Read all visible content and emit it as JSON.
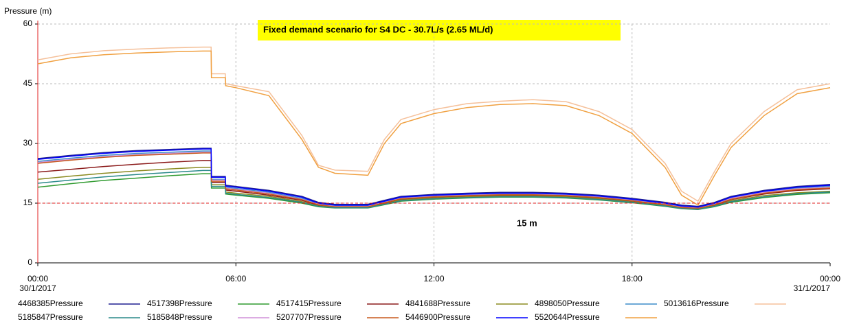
{
  "chart_data": {
    "type": "line",
    "title": "Fixed demand scenario for S4 DC - 30.7L/s (2.65 ML/d)",
    "y_label": "Pressure (m)",
    "threshold": {
      "value": 15,
      "label": "15 m",
      "color": "#e02020"
    },
    "x": [
      0,
      1,
      2,
      3,
      4,
      5,
      5.25,
      5.26,
      5.68,
      5.69,
      6,
      7,
      8,
      8.5,
      9,
      10,
      10.5,
      11,
      12,
      13,
      14,
      15,
      16,
      17,
      18,
      19,
      19.5,
      20,
      20.5,
      21,
      22,
      23,
      24
    ],
    "xlim": [
      0,
      24
    ],
    "xticks": [
      {
        "value": 0,
        "label": "00:00"
      },
      {
        "value": 6,
        "label": "06:00"
      },
      {
        "value": 12,
        "label": "12:00"
      },
      {
        "value": 18,
        "label": "18:00"
      },
      {
        "value": 24,
        "label": "00:00"
      }
    ],
    "date_labels": [
      {
        "value": 0,
        "label": "30/1/2017"
      },
      {
        "value": 24,
        "label": "31/1/2017"
      }
    ],
    "ylim": [
      0,
      60
    ],
    "yticks": [
      0,
      15,
      30,
      45,
      60
    ],
    "grid": true,
    "series": [
      {
        "name": "4468385Pressure",
        "color": "#1f1f8f",
        "values": [
          26.2,
          27,
          27.7,
          28.2,
          28.5,
          28.8,
          28.8,
          21.7,
          21.7,
          19.5,
          19.2,
          18.2,
          16.7,
          15.2,
          14.7,
          14.7,
          15.7,
          16.7,
          17.2,
          17.5,
          17.7,
          17.7,
          17.5,
          17,
          16.2,
          15.2,
          14.5,
          14.2,
          15.2,
          16.7,
          18.2,
          19.2,
          19.7
        ]
      },
      {
        "name": "4517398Pressure",
        "color": "#2e9a2e",
        "values": [
          19,
          19.9,
          20.7,
          21.3,
          21.9,
          22.4,
          22.4,
          18.8,
          18.8,
          17.3,
          17,
          16.2,
          15,
          14.1,
          13.8,
          13.8,
          14.6,
          15.5,
          16,
          16.3,
          16.5,
          16.5,
          16.3,
          15.8,
          15.1,
          14.2,
          13.6,
          13.4,
          14.1,
          15.2,
          16.4,
          17.2,
          17.6
        ]
      },
      {
        "name": "4517415Pressure",
        "color": "#8b1a1a",
        "values": [
          22.8,
          23.5,
          24.2,
          24.8,
          25.3,
          25.7,
          25.7,
          20.2,
          20.2,
          18.3,
          18,
          17,
          15.7,
          14.5,
          14,
          14,
          15,
          16,
          16.5,
          16.8,
          17,
          17,
          16.8,
          16.3,
          15.5,
          14.5,
          13.8,
          13.6,
          14.5,
          15.9,
          17.3,
          18.2,
          18.6
        ]
      },
      {
        "name": "4841688Pressure",
        "color": "#8b8b20",
        "values": [
          21,
          21.8,
          22.5,
          23.1,
          23.6,
          24,
          24,
          19.6,
          19.6,
          17.8,
          17.5,
          16.7,
          15.4,
          14.3,
          13.9,
          13.9,
          14.8,
          15.8,
          16.3,
          16.6,
          16.8,
          16.8,
          16.6,
          16.1,
          15.3,
          14.4,
          13.7,
          13.5,
          14.3,
          15.6,
          16.9,
          17.6,
          18
        ]
      },
      {
        "name": "4898050Pressure",
        "color": "#3c8cc8",
        "values": [
          25.5,
          26.3,
          27,
          27.5,
          27.8,
          28.1,
          28.1,
          21,
          21,
          19,
          18.7,
          17.7,
          16.2,
          14.8,
          14.3,
          14.3,
          15.3,
          16.3,
          16.8,
          17.1,
          17.3,
          17.3,
          17.1,
          16.6,
          15.8,
          14.8,
          14.1,
          13.9,
          14.8,
          16.3,
          17.8,
          18.8,
          19.3
        ]
      },
      {
        "name": "5013616Pressure",
        "color": "#f5c09a",
        "values": [
          51,
          52.5,
          53.3,
          53.7,
          54,
          54.2,
          54.2,
          47.5,
          47.5,
          45,
          44.5,
          43,
          32,
          24.5,
          23.3,
          23,
          31,
          36,
          38.5,
          40,
          40.6,
          41,
          40.5,
          38,
          33.5,
          25,
          18,
          15.5,
          23,
          30,
          38,
          43.5,
          45
        ]
      },
      {
        "name": "5185847Pressure",
        "color": "#2a8a8a",
        "values": [
          20,
          20.8,
          21.6,
          22.2,
          22.7,
          23.2,
          23.2,
          19.2,
          19.2,
          17.5,
          17.2,
          16.4,
          15.2,
          14.2,
          13.85,
          13.85,
          14.7,
          15.6,
          16.1,
          16.4,
          16.6,
          16.6,
          16.4,
          15.9,
          15.2,
          14.3,
          13.65,
          13.45,
          14.2,
          15.4,
          16.6,
          17.4,
          17.8
        ]
      },
      {
        "name": "5185848Pressure",
        "color": "#d090d8",
        "values": [
          25.2,
          26,
          26.7,
          27.2,
          27.5,
          27.8,
          27.8,
          20.8,
          20.8,
          18.8,
          18.5,
          17.5,
          16,
          14.7,
          14.2,
          14.2,
          15.2,
          16.2,
          16.7,
          17,
          17.2,
          17.2,
          17,
          16.5,
          15.7,
          14.7,
          14,
          13.8,
          14.7,
          16.2,
          17.7,
          18.6,
          19
        ]
      },
      {
        "name": "5207707Pressure",
        "color": "#c85a1e",
        "values": [
          25,
          25.8,
          26.5,
          27,
          27.3,
          27.6,
          27.6,
          20.5,
          20.5,
          18.6,
          18.3,
          17.3,
          15.9,
          14.6,
          14.1,
          14.1,
          15.1,
          16.1,
          16.6,
          16.9,
          17.1,
          17.1,
          16.9,
          16.4,
          15.6,
          14.6,
          13.9,
          13.7,
          14.6,
          16,
          17.5,
          18.4,
          18.8
        ]
      },
      {
        "name": "5446900Pressure",
        "color": "#0000ff",
        "values": [
          26,
          26.8,
          27.5,
          28,
          28.3,
          28.6,
          28.6,
          21.5,
          21.5,
          19.3,
          19,
          18,
          16.5,
          15,
          14.5,
          14.5,
          15.5,
          16.5,
          17,
          17.3,
          17.5,
          17.5,
          17.3,
          16.8,
          16,
          15,
          14.3,
          14,
          15,
          16.5,
          18,
          19,
          19.5
        ]
      },
      {
        "name": "5520644Pressure",
        "color": "#f0a040",
        "values": [
          50,
          51.5,
          52.3,
          52.7,
          53,
          53.2,
          53.2,
          46.5,
          46.5,
          44.5,
          44,
          42,
          31,
          24,
          22.5,
          22,
          30,
          35,
          37.5,
          39,
          39.8,
          40,
          39.5,
          37,
          32.5,
          24,
          17,
          14.5,
          22,
          29,
          37,
          42.5,
          44
        ]
      }
    ]
  }
}
